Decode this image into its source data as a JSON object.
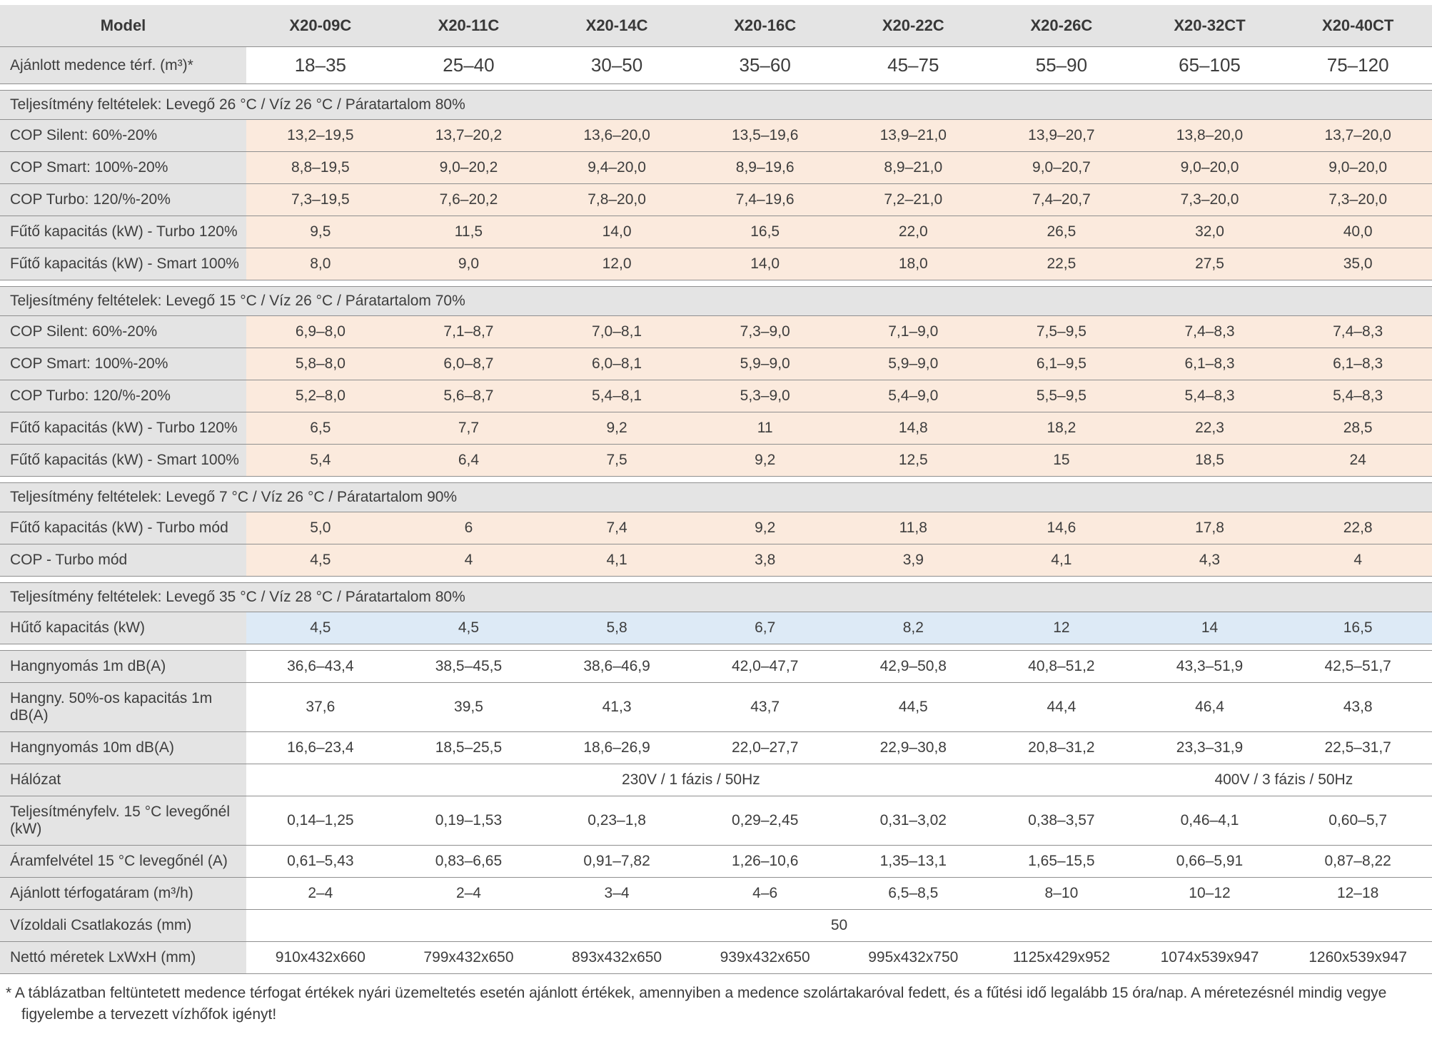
{
  "header": {
    "label": "Model",
    "models": [
      "X20-09C",
      "X20-11C",
      "X20-14C",
      "X20-16C",
      "X20-22C",
      "X20-26C",
      "X20-32CT",
      "X20-40CT"
    ]
  },
  "rows": [
    {
      "type": "data",
      "tint": "white",
      "size": "large",
      "label": "Ajánlott medence térf. (m³)*",
      "values": [
        "18–35",
        "25–40",
        "30–50",
        "35–60",
        "45–75",
        "55–90",
        "65–105",
        "75–120"
      ]
    },
    {
      "type": "gap"
    },
    {
      "type": "section",
      "title": "Teljesítmény feltételek: Levegő 26 °C / Víz 26 °C / Páratartalom 80%"
    },
    {
      "type": "data",
      "tint": "peach",
      "label": "COP Silent: 60%-20%",
      "values": [
        "13,2–19,5",
        "13,7–20,2",
        "13,6–20,0",
        "13,5–19,6",
        "13,9–21,0",
        "13,9–20,7",
        "13,8–20,0",
        "13,7–20,0"
      ]
    },
    {
      "type": "data",
      "tint": "peach",
      "label": "COP Smart: 100%-20%",
      "values": [
        "8,8–19,5",
        "9,0–20,2",
        "9,4–20,0",
        "8,9–19,6",
        "8,9–21,0",
        "9,0–20,7",
        "9,0–20,0",
        "9,0–20,0"
      ]
    },
    {
      "type": "data",
      "tint": "peach",
      "label": "COP Turbo: 120/%-20%",
      "values": [
        "7,3–19,5",
        "7,6–20,2",
        "7,8–20,0",
        "7,4–19,6",
        "7,2–21,0",
        "7,4–20,7",
        "7,3–20,0",
        "7,3–20,0"
      ]
    },
    {
      "type": "data",
      "tint": "peach",
      "label": "Fűtő kapacitás (kW) - Turbo 120%",
      "values": [
        "9,5",
        "11,5",
        "14,0",
        "16,5",
        "22,0",
        "26,5",
        "32,0",
        "40,0"
      ]
    },
    {
      "type": "data",
      "tint": "peach",
      "label": "Fűtő kapacitás (kW) - Smart 100%",
      "values": [
        "8,0",
        "9,0",
        "12,0",
        "14,0",
        "18,0",
        "22,5",
        "27,5",
        "35,0"
      ]
    },
    {
      "type": "gap"
    },
    {
      "type": "section",
      "title": "Teljesítmény feltételek: Levegő 15 °C / Víz 26 °C / Páratartalom 70%"
    },
    {
      "type": "data",
      "tint": "peach",
      "label": "COP Silent: 60%-20%",
      "values": [
        "6,9–8,0",
        "7,1–8,7",
        "7,0–8,1",
        "7,3–9,0",
        "7,1–9,0",
        "7,5–9,5",
        "7,4–8,3",
        "7,4–8,3"
      ]
    },
    {
      "type": "data",
      "tint": "peach",
      "label": "COP Smart: 100%-20%",
      "values": [
        "5,8–8,0",
        "6,0–8,7",
        "6,0–8,1",
        "5,9–9,0",
        "5,9–9,0",
        "6,1–9,5",
        "6,1–8,3",
        "6,1–8,3"
      ]
    },
    {
      "type": "data",
      "tint": "peach",
      "label": "COP Turbo: 120/%-20%",
      "values": [
        "5,2–8,0",
        "5,6–8,7",
        "5,4–8,1",
        "5,3–9,0",
        "5,4–9,0",
        "5,5–9,5",
        "5,4–8,3",
        "5,4–8,3"
      ]
    },
    {
      "type": "data",
      "tint": "peach",
      "label": "Fűtő kapacitás (kW) - Turbo 120%",
      "values": [
        "6,5",
        "7,7",
        "9,2",
        "11",
        "14,8",
        "18,2",
        "22,3",
        "28,5"
      ]
    },
    {
      "type": "data",
      "tint": "peach",
      "label": "Fűtő kapacitás (kW) - Smart 100%",
      "values": [
        "5,4",
        "6,4",
        "7,5",
        "9,2",
        "12,5",
        "15",
        "18,5",
        "24"
      ]
    },
    {
      "type": "gap"
    },
    {
      "type": "section",
      "title": "Teljesítmény feltételek: Levegő 7 °C / Víz 26 °C / Páratartalom 90%"
    },
    {
      "type": "data",
      "tint": "peach",
      "label": "Fűtő kapacitás (kW) - Turbo mód",
      "values": [
        "5,0",
        "6",
        "7,4",
        "9,2",
        "11,8",
        "14,6",
        "17,8",
        "22,8"
      ]
    },
    {
      "type": "data",
      "tint": "peach",
      "label": "COP - Turbo mód",
      "values": [
        "4,5",
        "4",
        "4,1",
        "3,8",
        "3,9",
        "4,1",
        "4,3",
        "4"
      ]
    },
    {
      "type": "gap"
    },
    {
      "type": "section",
      "title": "Teljesítmény feltételek: Levegő 35 °C / Víz 28 °C / Páratartalom 80%"
    },
    {
      "type": "data",
      "tint": "blue",
      "label": "Hűtő kapacitás (kW)",
      "values": [
        "4,5",
        "4,5",
        "5,8",
        "6,7",
        "8,2",
        "12",
        "14",
        "16,5"
      ]
    },
    {
      "type": "gap"
    },
    {
      "type": "data",
      "tint": "white",
      "label": "Hangnyomás 1m dB(A)",
      "values": [
        "36,6–43,4",
        "38,5–45,5",
        "38,6–46,9",
        "42,0–47,7",
        "42,9–50,8",
        "40,8–51,2",
        "43,3–51,9",
        "42,5–51,7"
      ]
    },
    {
      "type": "data",
      "tint": "white",
      "label": "Hangny. 50%-os kapacitás 1m dB(A)",
      "values": [
        "37,6",
        "39,5",
        "41,3",
        "43,7",
        "44,5",
        "44,4",
        "46,4",
        "43,8"
      ]
    },
    {
      "type": "data",
      "tint": "white",
      "label": "Hangnyomás 10m dB(A)",
      "values": [
        "16,6–23,4",
        "18,5–25,5",
        "18,6–26,9",
        "22,0–27,7",
        "22,9–30,8",
        "20,8–31,2",
        "23,3–31,9",
        "22,5–31,7"
      ]
    },
    {
      "type": "span",
      "tint": "white",
      "label": "Hálózat",
      "cells": [
        {
          "text": "230V / 1 fázis / 50Hz",
          "span": 6
        },
        {
          "text": "400V / 3 fázis / 50Hz",
          "span": 2
        }
      ]
    },
    {
      "type": "data",
      "tint": "white",
      "label": "Teljesítményfelv. 15 °C levegőnél (kW)",
      "values": [
        "0,14–1,25",
        "0,19–1,53",
        "0,23–1,8",
        "0,29–2,45",
        "0,31–3,02",
        "0,38–3,57",
        "0,46–4,1",
        "0,60–5,7"
      ]
    },
    {
      "type": "data",
      "tint": "white",
      "label": "Áramfelvétel 15 °C levegőnél (A)",
      "values": [
        "0,61–5,43",
        "0,83–6,65",
        "0,91–7,82",
        "1,26–10,6",
        "1,35–13,1",
        "1,65–15,5",
        "0,66–5,91",
        "0,87–8,22"
      ]
    },
    {
      "type": "data",
      "tint": "white",
      "label": "Ajánlott térfogatáram (m³/h)",
      "values": [
        "2–4",
        "2–4",
        "3–4",
        "4–6",
        "6,5–8,5",
        "8–10",
        "10–12",
        "12–18"
      ]
    },
    {
      "type": "span",
      "tint": "white",
      "label": "Vízoldali Csatlakozás (mm)",
      "cells": [
        {
          "text": "50",
          "span": 8
        }
      ]
    },
    {
      "type": "data",
      "tint": "white",
      "label": "Nettó méretek LxWxH (mm)",
      "values": [
        "910x432x660",
        "799x432x650",
        "893x432x650",
        "939x432x650",
        "995x432x750",
        "1125x429x952",
        "1074x539x947",
        "1260x539x947"
      ]
    }
  ],
  "footnote": "* A táblázatban feltüntetett medence térfogat értékek nyári üzemeltetés esetén ajánlott értékek, amennyiben a medence szolártakaróval fedett, és a fűtési idő legalább 15 óra/nap. A méretezésnél mindig vegye figyelembe a tervezett vízhőfok igényt!",
  "colors": {
    "section_bg": "#e4e4e4",
    "label_bg": "#e4e4e4",
    "heating_cells_bg": "#fbeadd",
    "cooling_cells_bg": "#ddeaf6",
    "border": "#8f8f8f",
    "text": "#3d3d3d"
  }
}
